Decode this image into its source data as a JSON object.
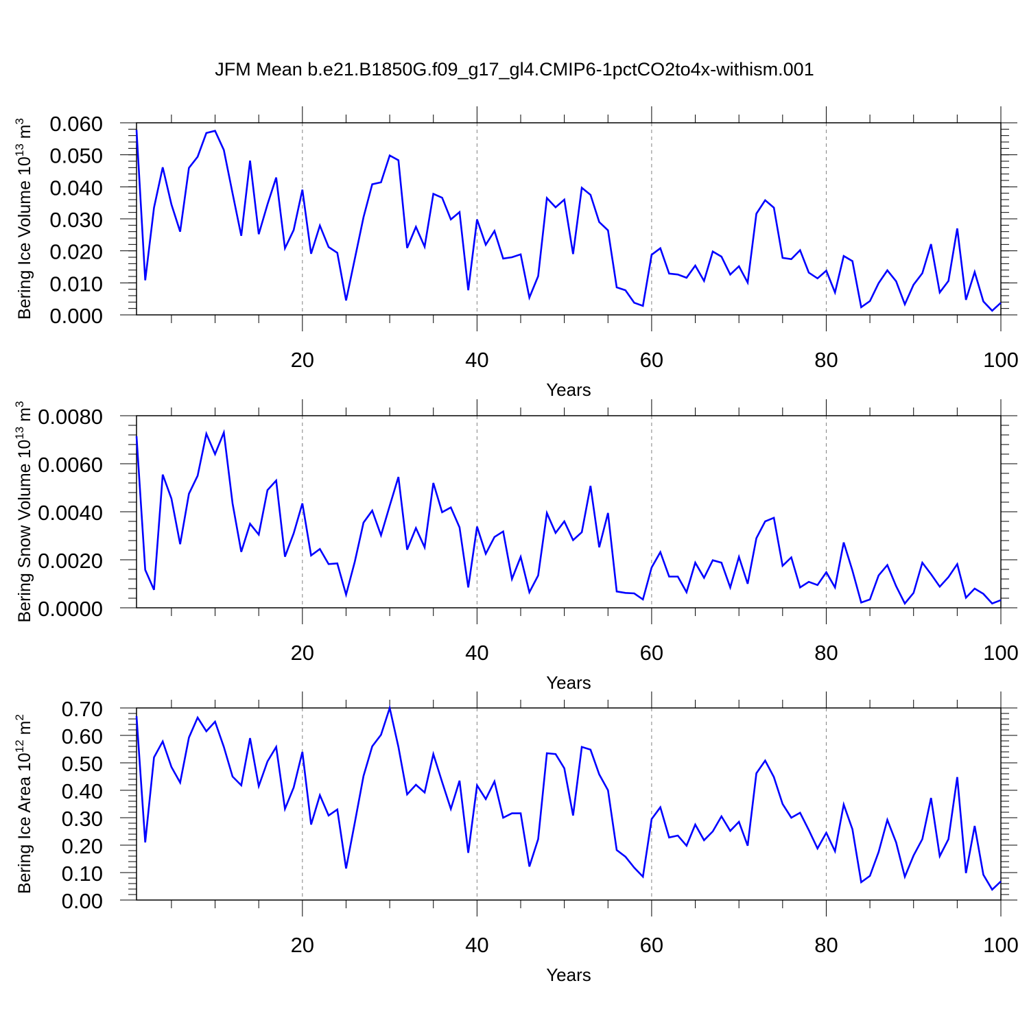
{
  "title": "JFM Mean b.e21.B1850G.f09_g17_gl4.CMIP6-1pctCO2to4x-withism.001",
  "colors": {
    "line": "#0000ff",
    "axis": "#000000",
    "grid": "#808080"
  },
  "chart_data": [
    {
      "type": "line",
      "name": "ice-volume",
      "ylabel": {
        "prefix": "Bering Ice Volume 10",
        "sup": "13",
        "unit": " m",
        "unitsup": "3"
      },
      "xlabel": "Years",
      "xlim": [
        1,
        100
      ],
      "ylim": [
        0,
        0.06
      ],
      "x_ticks": [
        20,
        40,
        60,
        80,
        100
      ],
      "x_tick_labels": [
        "20",
        "40",
        "60",
        "80",
        "100"
      ],
      "y_ticks": [
        0,
        0.01,
        0.02,
        0.03,
        0.04,
        0.05,
        0.06
      ],
      "y_tick_labels": [
        "0.000",
        "0.010",
        "0.020",
        "0.030",
        "0.040",
        "0.050",
        "0.060"
      ],
      "y_minor_step": 0.002,
      "grid": "x-dashed",
      "series": [
        {
          "name": "Bering Ice Volume",
          "values": [
            0.0578,
            0.0108,
            0.0335,
            0.0461,
            0.0345,
            0.026,
            0.0459,
            0.0494,
            0.0568,
            0.0575,
            0.0515,
            0.038,
            0.0247,
            0.0482,
            0.0252,
            0.0345,
            0.0429,
            0.0208,
            0.0265,
            0.0391,
            0.0191,
            0.0279,
            0.0212,
            0.0194,
            0.0045,
            0.0175,
            0.0305,
            0.0408,
            0.0414,
            0.0498,
            0.0483,
            0.0209,
            0.0275,
            0.0213,
            0.0378,
            0.0366,
            0.0298,
            0.0321,
            0.0077,
            0.0298,
            0.0219,
            0.0262,
            0.0176,
            0.018,
            0.0189,
            0.0054,
            0.0121,
            0.0365,
            0.0336,
            0.036,
            0.019,
            0.0397,
            0.0375,
            0.029,
            0.0264,
            0.0086,
            0.0077,
            0.0038,
            0.0028,
            0.0188,
            0.0208,
            0.0129,
            0.0126,
            0.0116,
            0.0154,
            0.0106,
            0.0198,
            0.0182,
            0.0126,
            0.0152,
            0.0101,
            0.0316,
            0.0358,
            0.0335,
            0.0178,
            0.0174,
            0.0202,
            0.0132,
            0.0114,
            0.0138,
            0.007,
            0.0184,
            0.0168,
            0.0024,
            0.0043,
            0.0099,
            0.0139,
            0.0105,
            0.0033,
            0.0094,
            0.013,
            0.0221,
            0.007,
            0.0106,
            0.027,
            0.0047,
            0.0134,
            0.0042,
            0.0013,
            0.0038
          ]
        }
      ]
    },
    {
      "type": "line",
      "name": "snow-volume",
      "ylabel": {
        "prefix": "Bering Snow Volume 10",
        "sup": "13",
        "unit": " m",
        "unitsup": "3"
      },
      "xlabel": "Years",
      "xlim": [
        1,
        100
      ],
      "ylim": [
        0,
        0.008
      ],
      "x_ticks": [
        20,
        40,
        60,
        80,
        100
      ],
      "x_tick_labels": [
        "20",
        "40",
        "60",
        "80",
        "100"
      ],
      "y_ticks": [
        0,
        0.002,
        0.004,
        0.006,
        0.008
      ],
      "y_tick_labels": [
        "0.0000",
        "0.0020",
        "0.0040",
        "0.0060",
        "0.0080"
      ],
      "y_minor_step": 0.0004,
      "grid": "x-dashed",
      "series": [
        {
          "name": "Bering Snow Volume",
          "values": [
            0.00715,
            0.00158,
            0.00075,
            0.00555,
            0.00455,
            0.00265,
            0.00475,
            0.0055,
            0.00725,
            0.0064,
            0.0073,
            0.00435,
            0.00233,
            0.0035,
            0.00305,
            0.0049,
            0.0053,
            0.00213,
            0.0031,
            0.00435,
            0.00218,
            0.00245,
            0.00182,
            0.00185,
            0.00055,
            0.00192,
            0.00355,
            0.00405,
            0.00302,
            0.00425,
            0.00545,
            0.00242,
            0.00332,
            0.00252,
            0.0052,
            0.00398,
            0.00418,
            0.00335,
            0.00085,
            0.00338,
            0.00225,
            0.00295,
            0.00318,
            0.0012,
            0.00212,
            0.00065,
            0.00135,
            0.00395,
            0.00312,
            0.0036,
            0.00282,
            0.00315,
            0.00508,
            0.00252,
            0.00395,
            0.00068,
            0.00062,
            0.0006,
            0.00035,
            0.00168,
            0.00232,
            0.0013,
            0.0013,
            0.00065,
            0.00188,
            0.00125,
            0.00198,
            0.00188,
            0.00085,
            0.00212,
            0.001,
            0.0029,
            0.0036,
            0.00375,
            0.00175,
            0.0021,
            0.00085,
            0.00108,
            0.00095,
            0.00148,
            0.00085,
            0.00272,
            0.00155,
            0.00022,
            0.00035,
            0.00135,
            0.00178,
            0.0009,
            0.00018,
            0.00062,
            0.00188,
            0.0014,
            0.00088,
            0.00128,
            0.00182,
            0.00042,
            0.0008,
            0.00058,
            0.00018,
            0.00032
          ]
        }
      ]
    },
    {
      "type": "line",
      "name": "ice-area",
      "ylabel": {
        "prefix": "Bering Ice Area 10",
        "sup": "12",
        "unit": " m",
        "unitsup": "2"
      },
      "xlabel": "Years",
      "xlim": [
        1,
        100
      ],
      "ylim": [
        0,
        0.7
      ],
      "x_ticks": [
        20,
        40,
        60,
        80,
        100
      ],
      "x_tick_labels": [
        "20",
        "40",
        "60",
        "80",
        "100"
      ],
      "y_ticks": [
        0,
        0.1,
        0.2,
        0.3,
        0.4,
        0.5,
        0.6,
        0.7
      ],
      "y_tick_labels": [
        "0.00",
        "0.10",
        "0.20",
        "0.30",
        "0.40",
        "0.50",
        "0.60",
        "0.70"
      ],
      "y_minor_step": 0.02,
      "grid": "x-dashed",
      "series": [
        {
          "name": "Bering Ice Area",
          "values": [
            0.67,
            0.21,
            0.52,
            0.578,
            0.485,
            0.428,
            0.592,
            0.665,
            0.615,
            0.65,
            0.558,
            0.45,
            0.418,
            0.59,
            0.415,
            0.505,
            0.558,
            0.332,
            0.41,
            0.54,
            0.275,
            0.382,
            0.308,
            0.33,
            0.115,
            0.282,
            0.452,
            0.56,
            0.602,
            0.7,
            0.558,
            0.385,
            0.42,
            0.392,
            0.532,
            0.43,
            0.332,
            0.435,
            0.172,
            0.418,
            0.368,
            0.432,
            0.3,
            0.316,
            0.316,
            0.122,
            0.222,
            0.535,
            0.532,
            0.48,
            0.308,
            0.558,
            0.548,
            0.458,
            0.4,
            0.182,
            0.158,
            0.118,
            0.085,
            0.295,
            0.338,
            0.228,
            0.235,
            0.198,
            0.275,
            0.218,
            0.25,
            0.305,
            0.252,
            0.285,
            0.198,
            0.462,
            0.508,
            0.448,
            0.35,
            0.3,
            0.318,
            0.255,
            0.188,
            0.245,
            0.178,
            0.348,
            0.258,
            0.065,
            0.088,
            0.175,
            0.292,
            0.21,
            0.085,
            0.162,
            0.222,
            0.372,
            0.16,
            0.222,
            0.448,
            0.098,
            0.27,
            0.092,
            0.038,
            0.068
          ]
        }
      ]
    }
  ]
}
